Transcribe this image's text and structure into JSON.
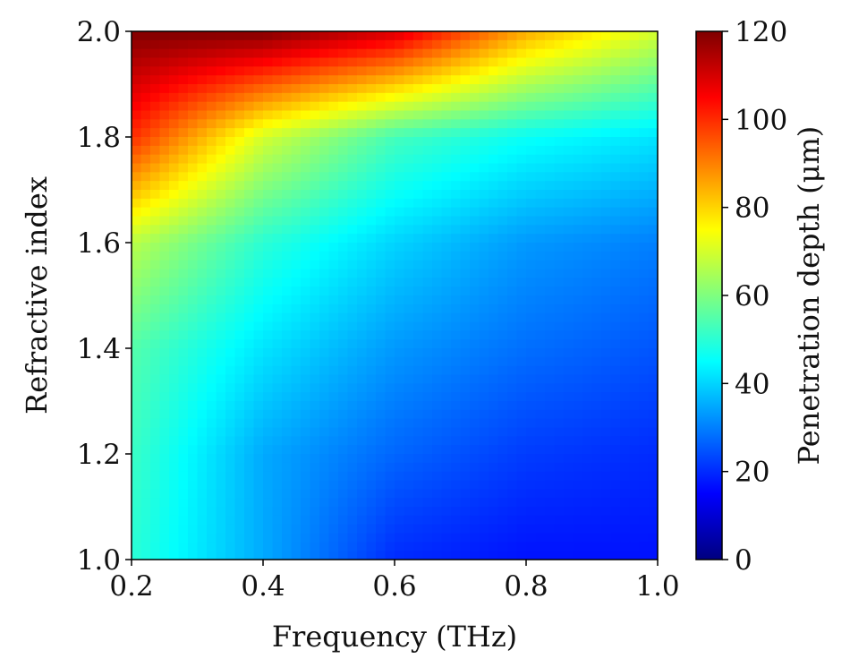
{
  "chart_data": {
    "type": "heatmap",
    "title": "",
    "xlabel": "Frequency (THz)",
    "ylabel": "Refractive index",
    "xlim": [
      0.2,
      1.0
    ],
    "ylim": [
      1.0,
      2.0
    ],
    "x_ticks": [
      "0.2",
      "0.4",
      "0.6",
      "0.8",
      "1.0"
    ],
    "y_ticks": [
      "1.0",
      "1.2",
      "1.4",
      "1.6",
      "1.8",
      "2.0"
    ],
    "colorbar": {
      "label": "Penetration depth (μm)",
      "range": [
        0,
        120
      ],
      "ticks": [
        "0",
        "20",
        "40",
        "60",
        "80",
        "100",
        "120"
      ],
      "colormap": "jet"
    },
    "x": [
      0.2,
      0.4,
      0.6,
      0.8,
      1.0
    ],
    "y": [
      1.0,
      1.2,
      1.4,
      1.6,
      1.8,
      2.0
    ],
    "z": [
      [
        50,
        35,
        20,
        17,
        17
      ],
      [
        52,
        35,
        27,
        22,
        20
      ],
      [
        55,
        42,
        33,
        28,
        25
      ],
      [
        67,
        50,
        40,
        33,
        30
      ],
      [
        100,
        70,
        53,
        46,
        42
      ],
      [
        120,
        120,
        110,
        85,
        70
      ]
    ]
  }
}
